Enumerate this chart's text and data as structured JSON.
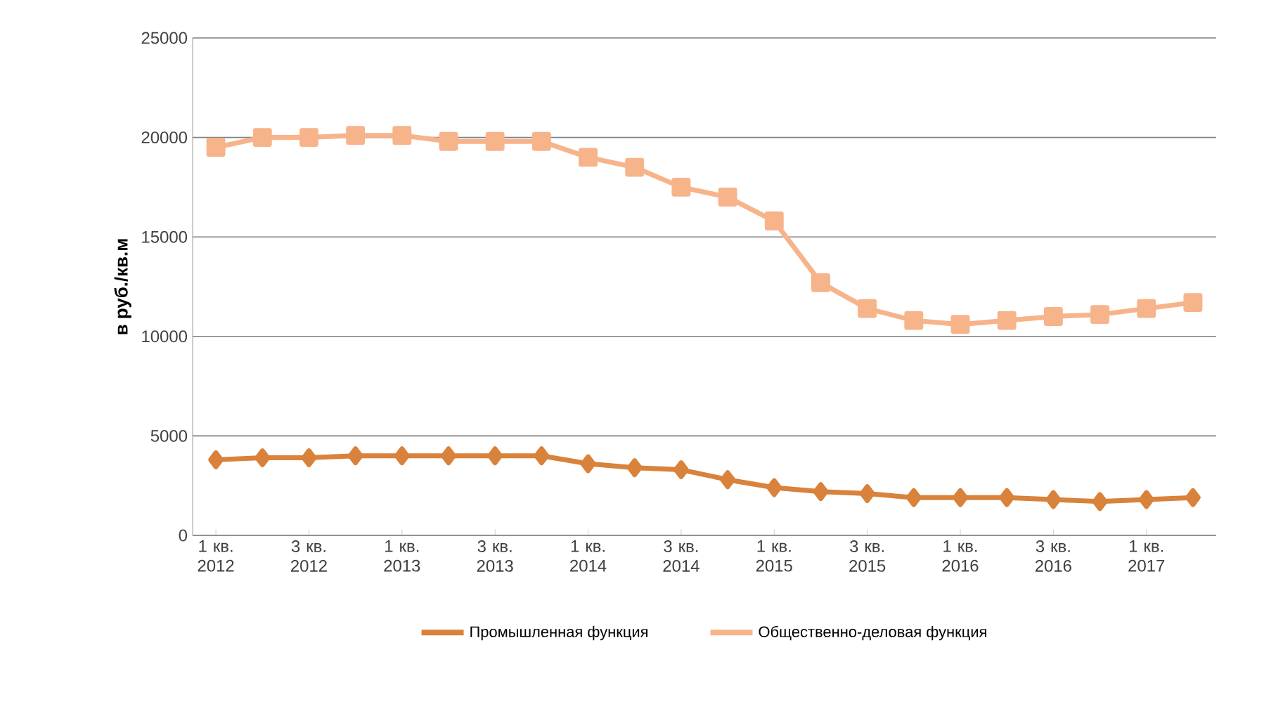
{
  "chart_data": {
    "type": "line",
    "ylabel": "в руб./кв.м",
    "categories": [
      "1 кв. 2012",
      null,
      "3 кв. 2012",
      null,
      "1 кв. 2013",
      null,
      "3 кв. 2013",
      null,
      "1 кв. 2014",
      null,
      "3 кв. 2014",
      null,
      "1 кв. 2015",
      null,
      "3 кв. 2015",
      null,
      "1 кв. 2016",
      null,
      "3 кв. 2016",
      null,
      "1 кв. 2017",
      null
    ],
    "series": [
      {
        "name": "Промышленная функция",
        "color": "#d9823b",
        "marker": "diamond",
        "values": [
          3800,
          3900,
          3900,
          4000,
          4000,
          4000,
          4000,
          4000,
          3600,
          3400,
          3300,
          2800,
          2400,
          2200,
          2100,
          1900,
          1900,
          1900,
          1800,
          1700,
          1800,
          1900
        ]
      },
      {
        "name": "Общественно-деловая функция",
        "color": "#f7b48a",
        "marker": "square",
        "values": [
          19500,
          20000,
          20000,
          20100,
          20100,
          19800,
          19800,
          19800,
          19000,
          18500,
          17500,
          17000,
          15800,
          12700,
          11400,
          10800,
          10600,
          10800,
          11000,
          11100,
          11400,
          11700
        ]
      }
    ],
    "ylim": [
      0,
      25000
    ],
    "yticks": [
      0,
      5000,
      10000,
      15000,
      20000,
      25000
    ],
    "grid": "y",
    "legend": "bottom"
  }
}
